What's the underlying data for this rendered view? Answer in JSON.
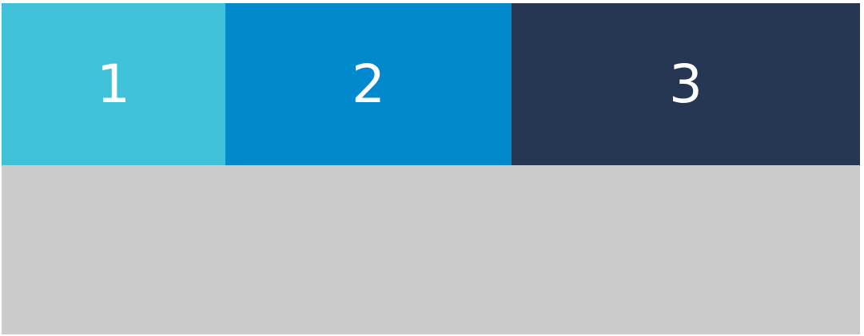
{
  "segments": [
    {
      "label": "1",
      "color": "#3FC2D7"
    },
    {
      "label": "2",
      "color": "#0089CC"
    },
    {
      "label": "3",
      "color": "#253752"
    }
  ],
  "bottom_panel": {
    "color": "#CCCCCC"
  }
}
